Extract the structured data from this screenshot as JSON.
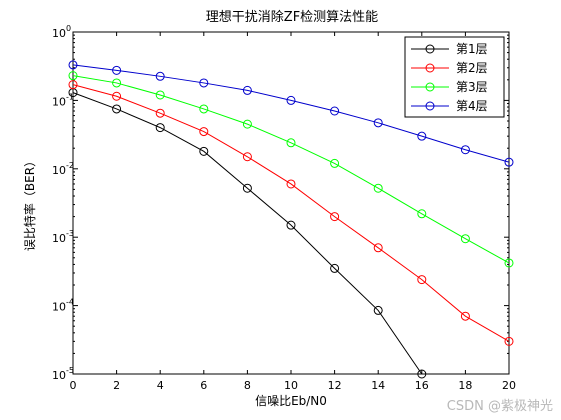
{
  "chart_data": {
    "type": "line",
    "title": "理想干扰消除ZF检测算法性能",
    "xlabel": "信噪比Eb/N0",
    "ylabel": "误比特率（BER）",
    "yscale": "log",
    "xlim": [
      0,
      20
    ],
    "ylim": [
      1e-05,
      1
    ],
    "grid": false,
    "legend_position": "top-right",
    "x_ticks": [
      0,
      2,
      4,
      6,
      8,
      10,
      12,
      14,
      16,
      18,
      20
    ],
    "y_tick_exponents": [
      0,
      -1,
      -2,
      -3,
      -4,
      -5
    ],
    "y_tick_base": "10",
    "x": [
      0,
      2,
      4,
      6,
      8,
      10,
      12,
      14,
      16,
      18,
      20
    ],
    "series": [
      {
        "name": "第1层",
        "color": "#000000",
        "values": [
          0.13,
          0.075,
          0.04,
          0.018,
          0.0052,
          0.0015,
          0.00035,
          8.5e-05,
          1e-05,
          null,
          null
        ]
      },
      {
        "name": "第2层",
        "color": "#ff0000",
        "values": [
          0.17,
          0.115,
          0.065,
          0.035,
          0.015,
          0.006,
          0.002,
          0.0007,
          0.00024,
          7e-05,
          3e-05
        ]
      },
      {
        "name": "第3层",
        "color": "#00ff00",
        "values": [
          0.23,
          0.18,
          0.12,
          0.075,
          0.045,
          0.024,
          0.012,
          0.0052,
          0.0022,
          0.00095,
          0.00042
        ]
      },
      {
        "name": "第4层",
        "color": "#0000cc",
        "values": [
          0.33,
          0.275,
          0.225,
          0.18,
          0.14,
          0.1,
          0.07,
          0.047,
          0.03,
          0.019,
          0.0125
        ]
      }
    ]
  },
  "watermark": "CSDN @紫极神光"
}
